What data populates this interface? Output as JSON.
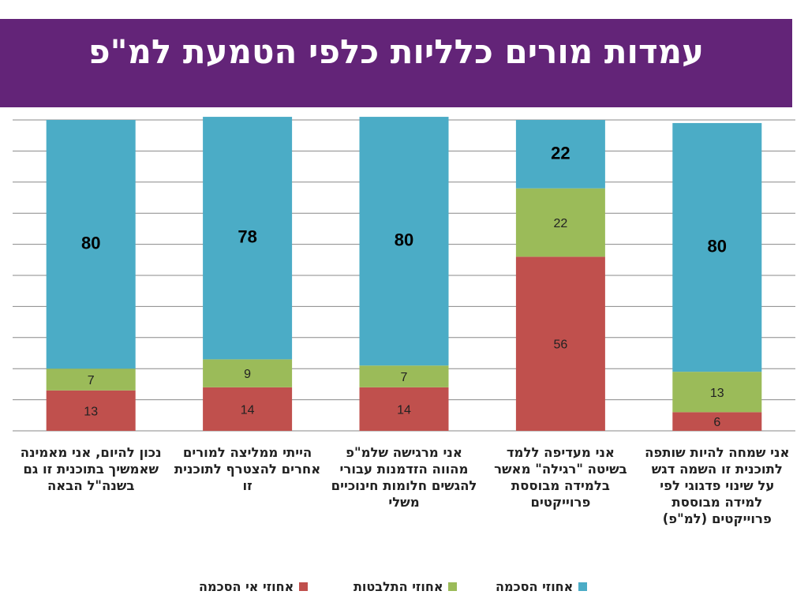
{
  "title": "עמדות מורים כלליות כלפי הטמעת למ\"פ",
  "colors": {
    "title_bg": "#632478",
    "disagree": "#C0504D",
    "neutral": "#9BBB59",
    "agree": "#4BACC6"
  },
  "chart_data": {
    "type": "bar",
    "stacked": true,
    "categories": [
      "נכון להיום, אני מאמינה שאמשיך בתוכנית זו גם בשנה\"ל הבאה",
      "הייתי ממליצה למורים אחרים להצטרף לתוכנית זו",
      "אני מרגישה שלמ\"פ מהווה הזדמנות עבורי להגשים חלומות חינוכיים משלי",
      "אני מעדיפה ללמד בשיטה \"רגילה\" מאשר בלמידה מבוססת פרוייקטים",
      "אני שמחה להיות שותפה לתוכנית זו השמה דגש על שינוי פדגוגי לפי למידה מבוססת פרוייקטים (למ\"פ)"
    ],
    "series": [
      {
        "name": "אחוזי אי הסכמה",
        "values": [
          13,
          14,
          14,
          56,
          6
        ]
      },
      {
        "name": "אחוזי התלבטות",
        "values": [
          7,
          9,
          7,
          22,
          13
        ]
      },
      {
        "name": "אחוזי הסכמה",
        "values": [
          80,
          78,
          80,
          22,
          80
        ]
      }
    ],
    "ylim": [
      0,
      100
    ],
    "grid": true,
    "legend_position": "bottom"
  }
}
